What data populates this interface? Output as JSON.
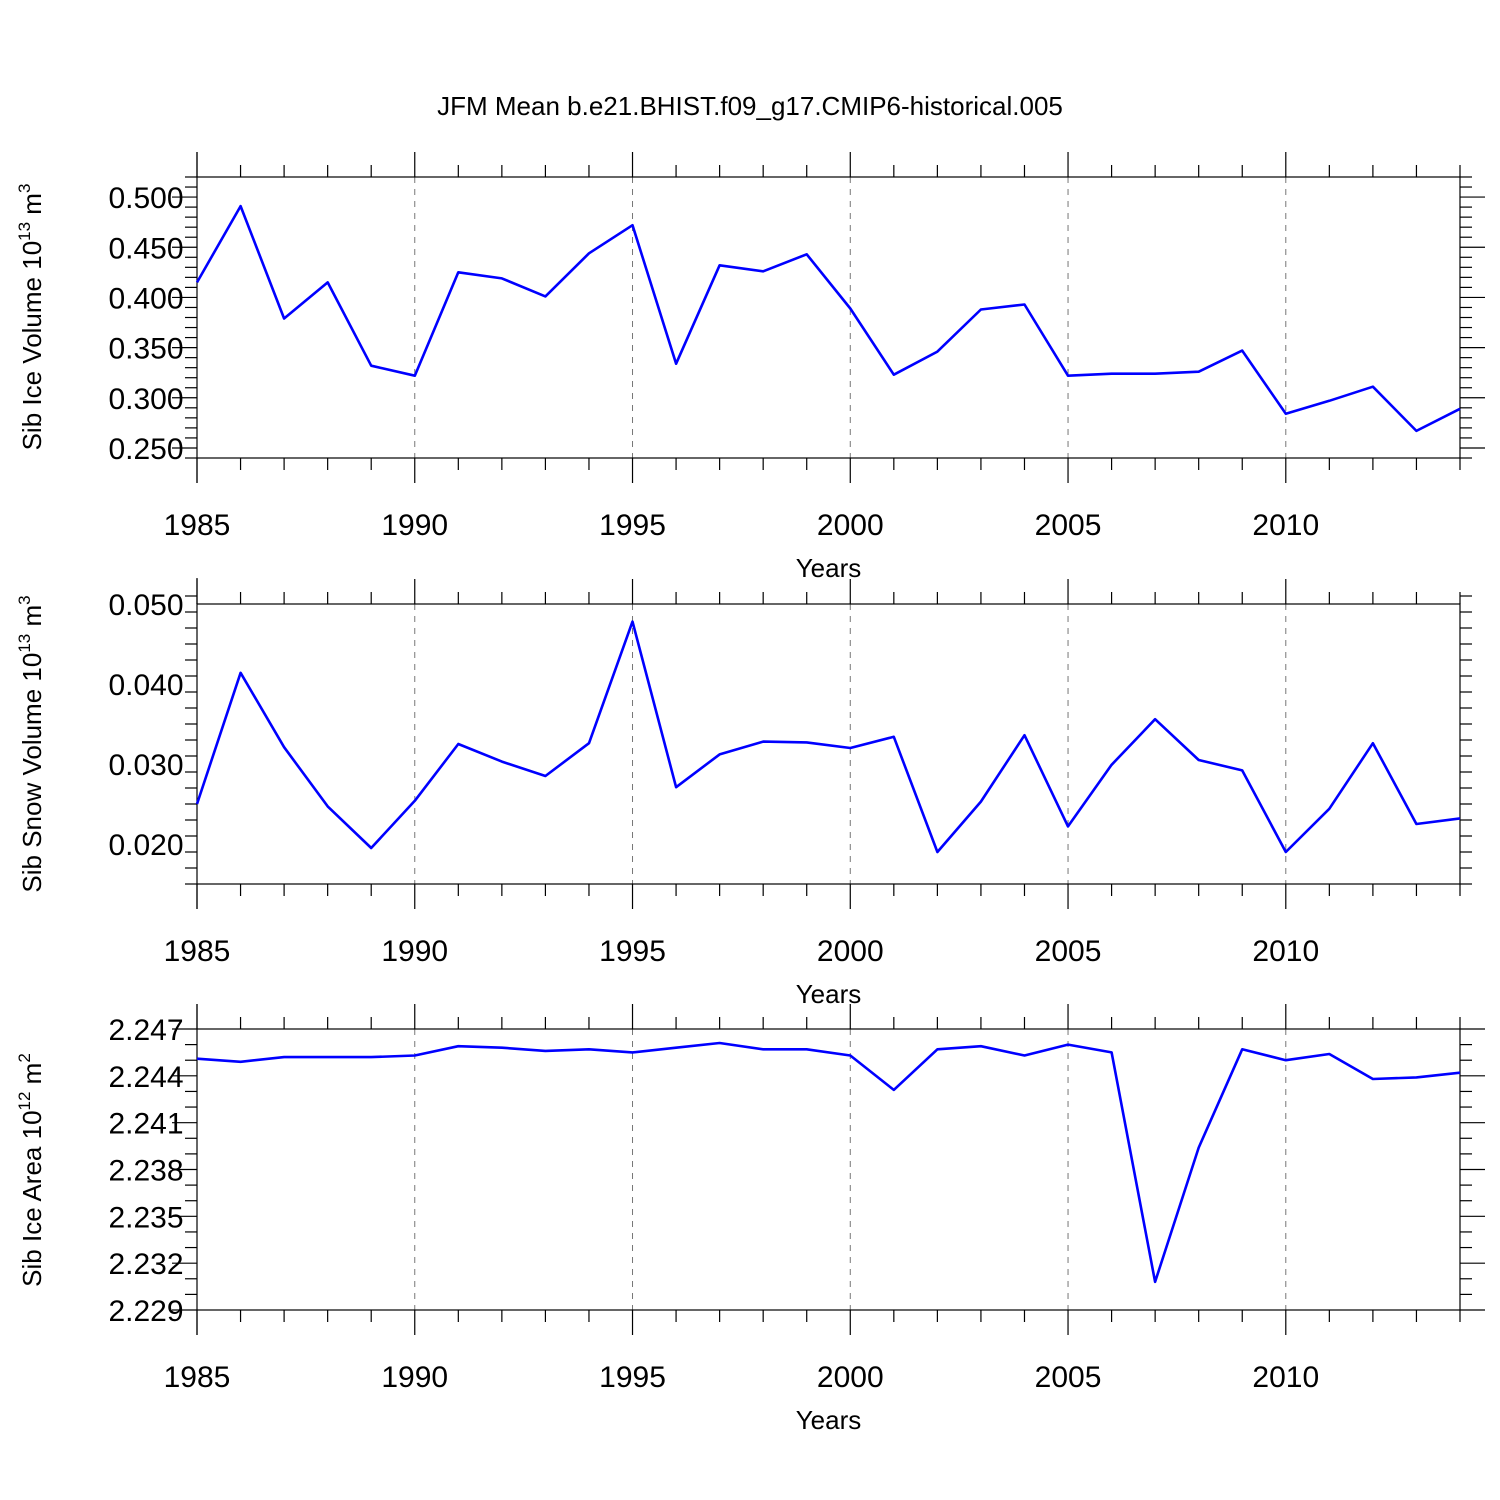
{
  "title": "JFM Mean b.e21.BHIST.f09_g17.CMIP6-historical.005",
  "line_color": "#0000ff",
  "chart_data": [
    {
      "type": "line",
      "series_name": "Sib Ice Volume",
      "ylabel": "Sib Ice Volume 10",
      "ylabel_exp": "13",
      "ylabel_unit": " m",
      "ylabel_unit_exp": "3",
      "xlabel": "Years",
      "xlim": [
        1985,
        2014
      ],
      "ylim": [
        0.24,
        0.52
      ],
      "x_ticks": [
        1985,
        1990,
        1995,
        2000,
        2005,
        2010
      ],
      "x_tick_labels": [
        "1985",
        "1990",
        "1995",
        "2000",
        "2005",
        "2010"
      ],
      "y_ticks": [
        0.25,
        0.3,
        0.35,
        0.4,
        0.45,
        0.5
      ],
      "y_tick_labels": [
        "0.250",
        "0.300",
        "0.350",
        "0.400",
        "0.450",
        "0.500"
      ],
      "y_minor_step": 0.01,
      "x": [
        1985,
        1986,
        1987,
        1988,
        1989,
        1990,
        1991,
        1992,
        1993,
        1994,
        1995,
        1996,
        1997,
        1998,
        1999,
        2000,
        2001,
        2002,
        2003,
        2004,
        2005,
        2006,
        2007,
        2008,
        2009,
        2010,
        2011,
        2012,
        2013,
        2014
      ],
      "values": [
        0.415,
        0.491,
        0.379,
        0.415,
        0.332,
        0.322,
        0.425,
        0.419,
        0.401,
        0.444,
        0.472,
        0.334,
        0.432,
        0.426,
        0.443,
        0.389,
        0.323,
        0.346,
        0.388,
        0.393,
        0.322,
        0.324,
        0.324,
        0.326,
        0.347,
        0.284,
        0.297,
        0.311,
        0.267,
        0.289
      ]
    },
    {
      "type": "line",
      "series_name": "Sib Snow Volume",
      "ylabel": "Sib Snow Volume 10",
      "ylabel_exp": "13",
      "ylabel_unit": " m",
      "ylabel_unit_exp": "3",
      "xlabel": "Years",
      "xlim": [
        1985,
        2014
      ],
      "ylim": [
        0.015,
        0.05
      ],
      "x_ticks": [
        1985,
        1990,
        1995,
        2000,
        2005,
        2010
      ],
      "x_tick_labels": [
        "1985",
        "1990",
        "1995",
        "2000",
        "2005",
        "2010"
      ],
      "y_ticks": [
        0.02,
        0.03,
        0.04,
        0.05
      ],
      "y_tick_labels": [
        "0.020",
        "0.030",
        "0.040",
        "0.050"
      ],
      "y_minor_step": 0.002,
      "x": [
        1985,
        1986,
        1987,
        1988,
        1989,
        1990,
        1991,
        1992,
        1993,
        1994,
        1995,
        1996,
        1997,
        1998,
        1999,
        2000,
        2001,
        2002,
        2003,
        2004,
        2005,
        2006,
        2007,
        2008,
        2009,
        2010,
        2011,
        2012,
        2013,
        2014
      ],
      "values": [
        0.025,
        0.0414,
        0.0321,
        0.0247,
        0.0195,
        0.0254,
        0.0325,
        0.0303,
        0.0285,
        0.0326,
        0.0478,
        0.0271,
        0.0312,
        0.0328,
        0.0327,
        0.032,
        0.0334,
        0.019,
        0.0253,
        0.0336,
        0.0222,
        0.0299,
        0.0356,
        0.0305,
        0.0292,
        0.019,
        0.0244,
        0.0326,
        0.0225,
        0.0232
      ]
    },
    {
      "type": "line",
      "series_name": "Sib Ice Area",
      "ylabel": "Sib Ice Area 10",
      "ylabel_exp": "12",
      "ylabel_unit": " m",
      "ylabel_unit_exp": "2",
      "xlabel": "Years",
      "xlim": [
        1985,
        2014
      ],
      "ylim": [
        2.229,
        2.247
      ],
      "x_ticks": [
        1985,
        1990,
        1995,
        2000,
        2005,
        2010
      ],
      "x_tick_labels": [
        "1985",
        "1990",
        "1995",
        "2000",
        "2005",
        "2010"
      ],
      "y_ticks": [
        2.229,
        2.232,
        2.235,
        2.238,
        2.241,
        2.244,
        2.247
      ],
      "y_tick_labels": [
        "2.229",
        "2.232",
        "2.235",
        "2.238",
        "2.241",
        "2.244",
        "2.247"
      ],
      "y_minor_step": 0.001,
      "x": [
        1985,
        1986,
        1987,
        1988,
        1989,
        1990,
        1991,
        1992,
        1993,
        1994,
        1995,
        1996,
        1997,
        1998,
        1999,
        2000,
        2001,
        2002,
        2003,
        2004,
        2005,
        2006,
        2007,
        2008,
        2009,
        2010,
        2011,
        2012,
        2013,
        2014
      ],
      "values": [
        2.2451,
        2.2449,
        2.2452,
        2.2452,
        2.2452,
        2.2453,
        2.2459,
        2.2458,
        2.2456,
        2.2457,
        2.2455,
        2.2458,
        2.2461,
        2.2457,
        2.2457,
        2.2453,
        2.2431,
        2.2457,
        2.2459,
        2.2453,
        2.246,
        2.2455,
        2.2308,
        2.2394,
        2.2457,
        2.245,
        2.2454,
        2.2438,
        2.2439,
        2.2442
      ]
    }
  ]
}
